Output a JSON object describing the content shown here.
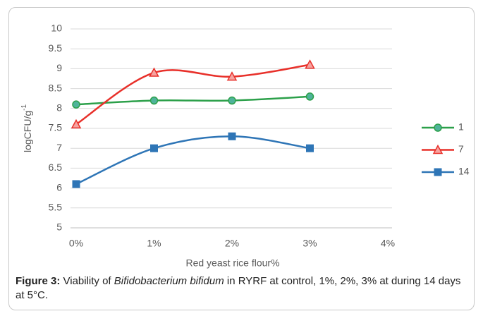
{
  "chart_data": {
    "type": "line",
    "ylabel": "logCFU/g",
    "ylabel_sup": "-1",
    "xlabel": "Red yeast rice flour%",
    "categories": [
      "0%",
      "1%",
      "2%",
      "3%",
      "4%"
    ],
    "series": [
      {
        "name": "1",
        "color": "#2ca04a",
        "marker": "circle",
        "marker_fill": "#4fb39a",
        "values": [
          8.1,
          8.2,
          8.2,
          8.3,
          null
        ]
      },
      {
        "name": "7",
        "color": "#e8302a",
        "marker": "triangle",
        "marker_fill": "#f6a3a0",
        "values": [
          7.6,
          8.9,
          8.8,
          9.1,
          null
        ]
      },
      {
        "name": "14",
        "color": "#2e75b6",
        "marker": "square",
        "marker_fill": "#2e75b6",
        "values": [
          6.1,
          7.0,
          7.3,
          7.0,
          null
        ]
      }
    ],
    "ylim": [
      5,
      10
    ],
    "yticks": [
      5,
      5.5,
      6,
      6.5,
      7,
      7.5,
      8,
      8.5,
      9,
      9.5,
      10
    ],
    "grid": true,
    "smooth": true,
    "legend": "right"
  },
  "caption": {
    "label": "Figure 3:",
    "before": " Viability of ",
    "species": "Bifidobacterium bifidum",
    "after": " in RYRF at control, 1%, 2%, 3% at during 14 days at 5°C."
  }
}
